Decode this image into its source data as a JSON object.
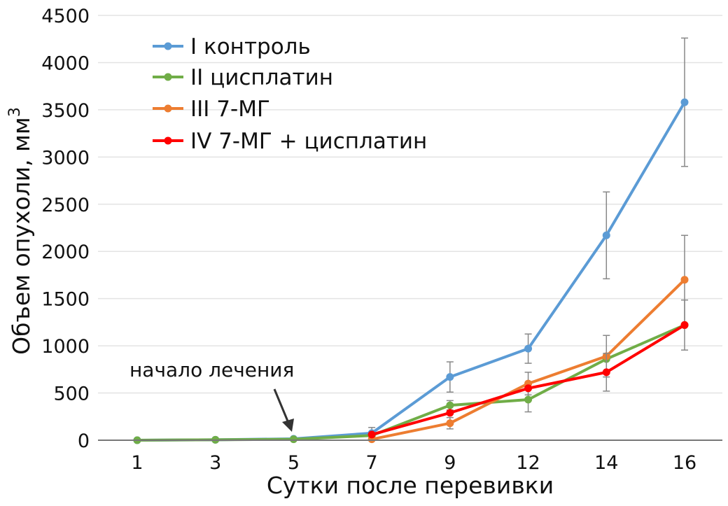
{
  "chart_data": {
    "type": "line",
    "title": "",
    "xlabel": "Сутки после перевивки",
    "ylabel": "Объем опухоли, мм",
    "ylabel_superscript": "3",
    "categories": [
      "1",
      "3",
      "5",
      "7",
      "9",
      "12",
      "14",
      "16"
    ],
    "ylim": [
      0,
      4500
    ],
    "yticks": [
      0,
      500,
      1000,
      1500,
      2000,
      2500,
      3000,
      3500,
      4000,
      4500
    ],
    "grid": "horizontal",
    "legend_position": "top-left",
    "annotation": {
      "text": "начало лечения",
      "category": "5"
    },
    "series": [
      {
        "name": "I контроль",
        "color": "#5b9bd5",
        "values": [
          0,
          5,
          15,
          75,
          670,
          970,
          2170,
          3580
        ],
        "errors": [
          0,
          0,
          0,
          60,
          160,
          155,
          460,
          680
        ]
      },
      {
        "name": "II цисплатин",
        "color": "#70ad47",
        "values": [
          0,
          5,
          10,
          50,
          370,
          430,
          860,
          1220
        ],
        "errors": [
          0,
          0,
          0,
          0,
          50,
          130,
          0,
          265
        ]
      },
      {
        "name": "III 7-МГ",
        "color": "#ed7d31",
        "values": [
          null,
          null,
          null,
          10,
          180,
          600,
          890,
          1700
        ],
        "errors": [
          0,
          0,
          0,
          0,
          60,
          120,
          220,
          470
        ]
      },
      {
        "name": "IV 7-МГ + цисплатин",
        "color": "#ff0000",
        "values": [
          null,
          null,
          null,
          60,
          290,
          550,
          720,
          1220
        ],
        "errors": [
          0,
          0,
          0,
          0,
          0,
          0,
          200,
          0
        ]
      }
    ]
  }
}
